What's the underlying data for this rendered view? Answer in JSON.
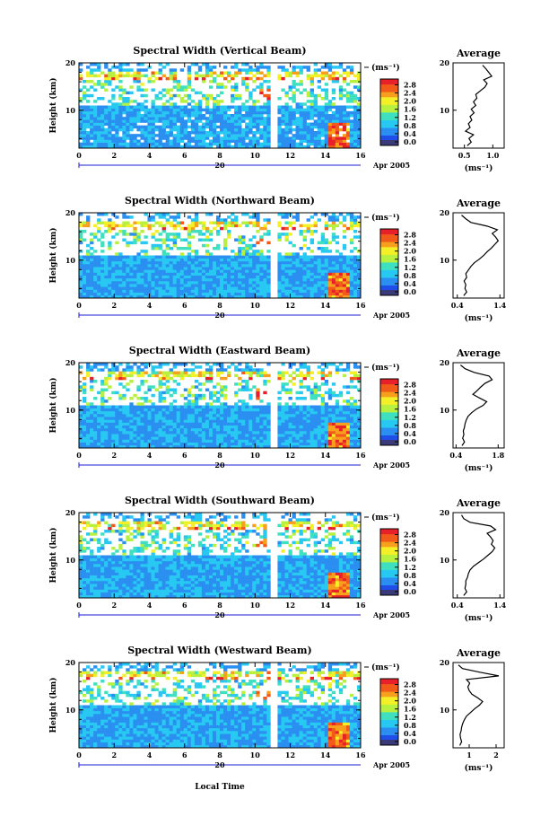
{
  "chart_data": {
    "type": "heatmap",
    "panels": [
      {
        "title": "Spectral Width (Vertical Beam)",
        "avg_xticks": [
          "0.5",
          "1.0"
        ],
        "avg_xlim": [
          0.3,
          1.2
        ],
        "profile": [
          0.55,
          0.62,
          0.58,
          0.66,
          0.52,
          0.6,
          0.57,
          0.63,
          0.6,
          0.67,
          0.62,
          0.7,
          0.66,
          0.72,
          0.7,
          0.78,
          0.86,
          0.9,
          0.84,
          0.98,
          0.93,
          0.88,
          0.82
        ]
      },
      {
        "title": "Spectral Width (Northward Beam)",
        "avg_xticks": [
          "0.4",
          "1.4"
        ],
        "avg_xlim": [
          0.3,
          1.5
        ],
        "profile": [
          0.55,
          0.62,
          0.58,
          0.6,
          0.56,
          0.62,
          0.6,
          0.66,
          0.72,
          0.8,
          0.92,
          1.02,
          1.1,
          1.2,
          1.28,
          1.36,
          1.3,
          1.22,
          1.34,
          1.1,
          0.72,
          0.6,
          0.5
        ]
      },
      {
        "title": "Spectral Width (Eastward Beam)",
        "avg_xticks": [
          "0.4",
          "1.8"
        ],
        "avg_xlim": [
          0.3,
          2.0
        ],
        "profile": [
          0.6,
          0.68,
          0.62,
          0.66,
          0.64,
          0.68,
          0.7,
          0.74,
          0.8,
          0.92,
          1.08,
          1.3,
          1.42,
          1.18,
          0.96,
          1.1,
          1.22,
          1.36,
          1.6,
          1.5,
          1.0,
          0.7,
          0.55
        ]
      },
      {
        "title": "Spectral Width (Southward Beam)",
        "avg_xticks": [
          "0.4",
          "1.4"
        ],
        "avg_xlim": [
          0.3,
          1.5
        ],
        "profile": [
          0.55,
          0.62,
          0.58,
          0.6,
          0.6,
          0.64,
          0.66,
          0.7,
          0.78,
          0.9,
          1.02,
          1.12,
          1.22,
          1.28,
          1.2,
          1.24,
          1.18,
          1.1,
          1.3,
          1.18,
          0.7,
          0.55,
          0.5
        ]
      },
      {
        "title": "Spectral Width (Westward Beam)",
        "avg_xticks": [
          "1",
          "2"
        ],
        "avg_xlim": [
          0.4,
          2.3
        ],
        "profile": [
          0.65,
          0.72,
          0.68,
          0.66,
          0.7,
          0.72,
          0.76,
          0.82,
          0.9,
          1.05,
          1.2,
          1.38,
          1.5,
          1.32,
          1.1,
          1.0,
          0.95,
          1.02,
          0.9,
          2.1,
          1.4,
          0.75,
          0.6
        ]
      }
    ],
    "ylabel": "Height (km)",
    "ylim": [
      2,
      20
    ],
    "yticks": [
      "10",
      "20"
    ],
    "xlim": [
      0,
      16
    ],
    "xticks": [
      "0",
      "2",
      "4",
      "6",
      "8",
      "10",
      "12",
      "14",
      "16"
    ],
    "date_day": "20",
    "date_month_year": "Apr 2005",
    "xlabel": "Local Time",
    "colorbar_unit": "(ms⁻¹)",
    "colorbar_ticks": [
      "0.0",
      "0.4",
      "0.8",
      "1.2",
      "1.6",
      "2.0",
      "2.4",
      "2.8"
    ],
    "colorbar_range": [
      0,
      3.0
    ],
    "avg_title": "Average",
    "avg_xlabel": "(ms⁻¹)",
    "data_gap_hours": [
      10.9,
      11.3
    ]
  }
}
